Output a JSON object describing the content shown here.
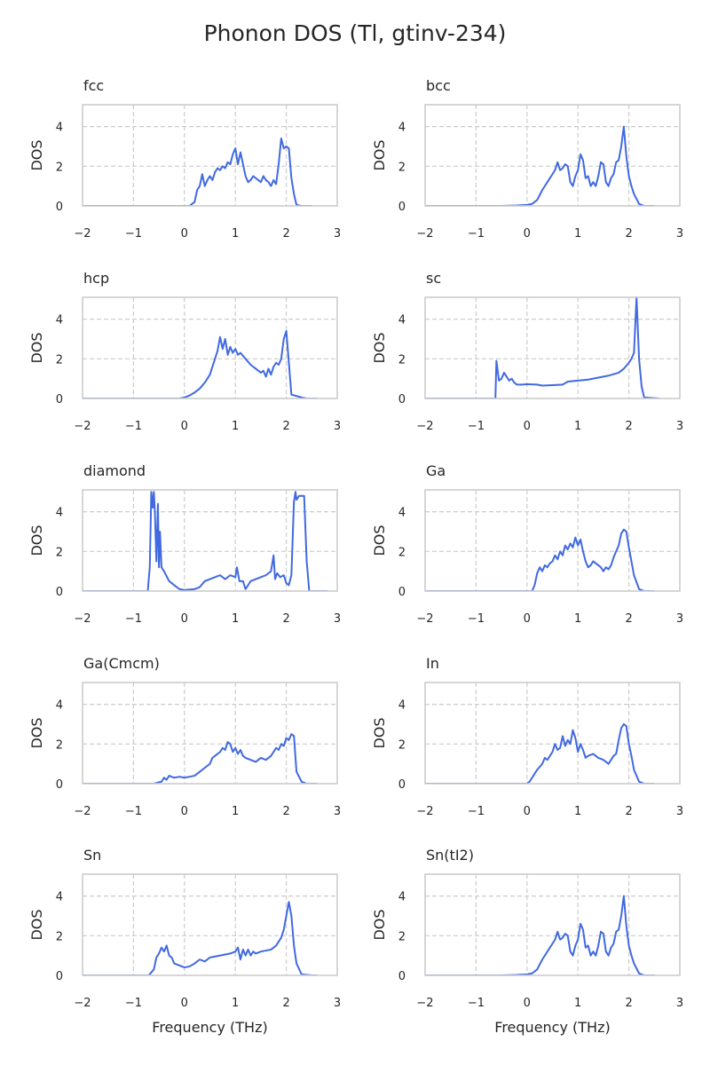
{
  "title": "Phonon DOS (Tl, gtinv-234)",
  "colors": {
    "line": "#4169e1",
    "grid": "#cccccc",
    "text": "#262626"
  },
  "chart_data": [
    {
      "type": "line",
      "title": "fcc",
      "ylabel": "DOS",
      "xlabel": "",
      "xlim": [
        -2,
        3
      ],
      "ylim": [
        0,
        5.1
      ],
      "xticks": [
        -2,
        -1,
        0,
        1,
        2,
        3
      ],
      "yticks": [
        0,
        2,
        4
      ],
      "grid": true,
      "x": [
        -2,
        0.1,
        0.2,
        0.25,
        0.3,
        0.35,
        0.4,
        0.45,
        0.5,
        0.55,
        0.6,
        0.65,
        0.7,
        0.75,
        0.8,
        0.85,
        0.9,
        0.95,
        1.0,
        1.05,
        1.1,
        1.15,
        1.2,
        1.25,
        1.3,
        1.35,
        1.4,
        1.45,
        1.5,
        1.55,
        1.6,
        1.65,
        1.7,
        1.75,
        1.8,
        1.85,
        1.9,
        1.95,
        2.0,
        2.05,
        2.1,
        2.15,
        2.2,
        2.3,
        2.5
      ],
      "y": [
        0,
        0,
        0.2,
        0.8,
        1.0,
        1.6,
        1.0,
        1.3,
        1.5,
        1.3,
        1.7,
        1.9,
        1.8,
        2.0,
        1.9,
        2.2,
        2.1,
        2.6,
        2.9,
        2.1,
        2.7,
        2.1,
        1.5,
        1.2,
        1.3,
        1.5,
        1.4,
        1.3,
        1.2,
        1.5,
        1.3,
        1.2,
        1.0,
        1.3,
        1.1,
        2.1,
        3.4,
        2.9,
        3.0,
        2.9,
        1.4,
        0.6,
        0.05,
        0,
        0
      ]
    },
    {
      "type": "line",
      "title": "bcc",
      "ylabel": "DOS",
      "xlabel": "",
      "xlim": [
        -2,
        3
      ],
      "ylim": [
        0,
        5.1
      ],
      "xticks": [
        -2,
        -1,
        0,
        1,
        2,
        3
      ],
      "yticks": [
        0,
        2,
        4
      ],
      "grid": true,
      "x": [
        -2,
        -0.5,
        -0.2,
        0,
        0.1,
        0.2,
        0.3,
        0.4,
        0.5,
        0.55,
        0.6,
        0.65,
        0.7,
        0.75,
        0.8,
        0.85,
        0.9,
        0.95,
        1.0,
        1.05,
        1.1,
        1.15,
        1.2,
        1.25,
        1.3,
        1.35,
        1.4,
        1.45,
        1.5,
        1.55,
        1.6,
        1.65,
        1.7,
        1.75,
        1.8,
        1.85,
        1.9,
        1.95,
        2.0,
        2.05,
        2.1,
        2.2,
        2.3,
        2.5
      ],
      "y": [
        0,
        0,
        0.02,
        0.05,
        0.1,
        0.3,
        0.8,
        1.2,
        1.6,
        1.8,
        2.2,
        1.8,
        1.9,
        2.1,
        2.0,
        1.2,
        1.0,
        1.5,
        1.8,
        2.6,
        2.3,
        1.4,
        1.5,
        1.0,
        1.2,
        1.0,
        1.5,
        2.2,
        2.1,
        1.2,
        1.0,
        1.4,
        1.6,
        2.2,
        2.3,
        3.0,
        4.0,
        2.5,
        1.5,
        1.0,
        0.6,
        0.1,
        0,
        0
      ]
    },
    {
      "type": "line",
      "title": "hcp",
      "ylabel": "DOS",
      "xlabel": "",
      "xlim": [
        -2,
        3
      ],
      "ylim": [
        0,
        5.1
      ],
      "xticks": [
        -2,
        -1,
        0,
        1,
        2,
        3
      ],
      "yticks": [
        0,
        2,
        4
      ],
      "grid": true,
      "x": [
        -2,
        -0.1,
        0,
        0.1,
        0.2,
        0.3,
        0.4,
        0.5,
        0.55,
        0.6,
        0.65,
        0.7,
        0.75,
        0.8,
        0.85,
        0.9,
        0.95,
        1.0,
        1.05,
        1.1,
        1.2,
        1.3,
        1.4,
        1.5,
        1.55,
        1.6,
        1.65,
        1.7,
        1.75,
        1.8,
        1.85,
        1.9,
        1.95,
        2.0,
        2.05,
        2.1,
        2.3,
        2.4,
        2.6
      ],
      "y": [
        0,
        0,
        0.05,
        0.15,
        0.3,
        0.5,
        0.8,
        1.2,
        1.6,
        2.0,
        2.4,
        3.1,
        2.5,
        3.0,
        2.2,
        2.6,
        2.3,
        2.5,
        2.2,
        2.3,
        2.0,
        1.7,
        1.5,
        1.3,
        1.4,
        1.1,
        1.5,
        1.2,
        1.6,
        1.8,
        1.7,
        2.0,
        3.0,
        3.4,
        1.8,
        0.2,
        0.05,
        0,
        0
      ]
    },
    {
      "type": "line",
      "title": "sc",
      "ylabel": "DOS",
      "xlabel": "",
      "xlim": [
        -2,
        3
      ],
      "ylim": [
        0,
        5.1
      ],
      "xticks": [
        -2,
        -1,
        0,
        1,
        2,
        3
      ],
      "yticks": [
        0,
        2,
        4
      ],
      "grid": true,
      "x": [
        -2,
        -0.7,
        -0.62,
        -0.6,
        -0.55,
        -0.5,
        -0.45,
        -0.4,
        -0.35,
        -0.3,
        -0.25,
        -0.2,
        -0.1,
        0,
        0.2,
        0.3,
        0.5,
        0.7,
        0.8,
        1.0,
        1.2,
        1.4,
        1.6,
        1.8,
        1.9,
        2.0,
        2.05,
        2.1,
        2.15,
        2.2,
        2.25,
        2.3,
        2.6
      ],
      "y": [
        0,
        0,
        0,
        1.9,
        0.9,
        1.0,
        1.3,
        1.1,
        0.9,
        1.0,
        0.8,
        0.7,
        0.7,
        0.72,
        0.7,
        0.65,
        0.67,
        0.7,
        0.85,
        0.9,
        0.95,
        1.05,
        1.15,
        1.3,
        1.5,
        1.8,
        2.0,
        2.3,
        5.1,
        2.0,
        0.6,
        0.05,
        0
      ]
    },
    {
      "type": "line",
      "title": "diamond",
      "ylabel": "DOS",
      "xlabel": "",
      "xlim": [
        -2,
        3
      ],
      "ylim": [
        0,
        5.1
      ],
      "xticks": [
        -2,
        -1,
        0,
        1,
        2,
        3
      ],
      "yticks": [
        0,
        2,
        4
      ],
      "grid": true,
      "x": [
        -2,
        -1.0,
        -0.72,
        -0.68,
        -0.65,
        -0.62,
        -0.6,
        -0.58,
        -0.55,
        -0.52,
        -0.5,
        -0.48,
        -0.45,
        -0.4,
        -0.3,
        -0.2,
        -0.1,
        0,
        0.2,
        0.3,
        0.4,
        0.5,
        0.6,
        0.7,
        0.8,
        0.9,
        1.0,
        1.03,
        1.08,
        1.15,
        1.2,
        1.3,
        1.4,
        1.5,
        1.6,
        1.7,
        1.75,
        1.78,
        1.82,
        1.88,
        1.95,
        2.0,
        2.05,
        2.1,
        2.15,
        2.18,
        2.2,
        2.25,
        2.35,
        2.4,
        2.45,
        2.5,
        2.8
      ],
      "y": [
        0,
        0,
        0,
        1.2,
        5.0,
        4.2,
        5.0,
        4.0,
        1.5,
        4.4,
        1.2,
        3.0,
        1.2,
        1.0,
        0.5,
        0.3,
        0.1,
        0.05,
        0.1,
        0.2,
        0.5,
        0.6,
        0.7,
        0.8,
        0.6,
        0.8,
        0.7,
        1.2,
        0.5,
        0.5,
        0.1,
        0.5,
        0.6,
        0.7,
        0.8,
        1.0,
        1.8,
        0.6,
        0.9,
        0.7,
        0.8,
        0.4,
        0.3,
        0.8,
        4.5,
        5.0,
        4.6,
        4.8,
        4.8,
        1.5,
        0,
        0,
        0
      ]
    },
    {
      "type": "line",
      "title": "Ga",
      "ylabel": "DOS",
      "xlabel": "",
      "xlim": [
        -2,
        3
      ],
      "ylim": [
        0,
        5.1
      ],
      "xticks": [
        -2,
        -1,
        0,
        1,
        2,
        3
      ],
      "yticks": [
        0,
        2,
        4
      ],
      "grid": true,
      "x": [
        -2,
        -0.3,
        0.1,
        0.15,
        0.2,
        0.25,
        0.3,
        0.35,
        0.4,
        0.45,
        0.5,
        0.55,
        0.6,
        0.65,
        0.7,
        0.75,
        0.8,
        0.85,
        0.9,
        0.95,
        1.0,
        1.05,
        1.1,
        1.15,
        1.2,
        1.25,
        1.3,
        1.35,
        1.4,
        1.45,
        1.5,
        1.55,
        1.6,
        1.65,
        1.7,
        1.75,
        1.8,
        1.85,
        1.9,
        1.95,
        2.0,
        2.05,
        2.1,
        2.2,
        2.3,
        2.5
      ],
      "y": [
        0,
        0,
        0,
        0.3,
        0.9,
        1.2,
        1.0,
        1.3,
        1.2,
        1.4,
        1.5,
        1.8,
        1.6,
        2.0,
        1.8,
        2.3,
        2.1,
        2.4,
        2.2,
        2.7,
        2.3,
        2.6,
        2.0,
        1.5,
        1.2,
        1.3,
        1.5,
        1.4,
        1.3,
        1.2,
        1.0,
        1.2,
        1.1,
        1.3,
        1.7,
        2.0,
        2.3,
        2.9,
        3.1,
        3.0,
        2.2,
        1.5,
        0.8,
        0.1,
        0,
        0
      ]
    },
    {
      "type": "line",
      "title": "Ga(Cmcm)",
      "ylabel": "DOS",
      "xlabel": "",
      "xlim": [
        -2,
        3
      ],
      "ylim": [
        0,
        5.1
      ],
      "xticks": [
        -2,
        -1,
        0,
        1,
        2,
        3
      ],
      "yticks": [
        0,
        2,
        4
      ],
      "grid": true,
      "x": [
        -2,
        -0.6,
        -0.45,
        -0.4,
        -0.35,
        -0.3,
        -0.25,
        -0.2,
        -0.1,
        0,
        0.1,
        0.2,
        0.25,
        0.3,
        0.4,
        0.5,
        0.55,
        0.6,
        0.65,
        0.7,
        0.75,
        0.8,
        0.85,
        0.9,
        0.95,
        1.0,
        1.05,
        1.1,
        1.15,
        1.2,
        1.3,
        1.4,
        1.5,
        1.6,
        1.7,
        1.75,
        1.8,
        1.85,
        1.9,
        1.95,
        2.0,
        2.05,
        2.1,
        2.15,
        2.2,
        2.3,
        2.4,
        2.6
      ],
      "y": [
        0,
        0,
        0.1,
        0.3,
        0.2,
        0.4,
        0.35,
        0.3,
        0.35,
        0.3,
        0.35,
        0.4,
        0.5,
        0.6,
        0.8,
        1.0,
        1.3,
        1.4,
        1.5,
        1.6,
        1.8,
        1.7,
        2.1,
        2.0,
        1.6,
        1.8,
        1.5,
        1.7,
        1.4,
        1.3,
        1.2,
        1.1,
        1.3,
        1.2,
        1.4,
        1.6,
        1.8,
        1.7,
        2.0,
        1.9,
        2.3,
        2.2,
        2.5,
        2.4,
        0.6,
        0.1,
        0,
        0
      ]
    },
    {
      "type": "line",
      "title": "In",
      "ylabel": "DOS",
      "xlabel": "",
      "xlim": [
        -2,
        3
      ],
      "ylim": [
        0,
        5.1
      ],
      "xticks": [
        -2,
        -1,
        0,
        1,
        2,
        3
      ],
      "yticks": [
        0,
        2,
        4
      ],
      "grid": true,
      "x": [
        -2,
        -0.4,
        0,
        0.05,
        0.1,
        0.2,
        0.3,
        0.35,
        0.4,
        0.45,
        0.5,
        0.55,
        0.6,
        0.65,
        0.7,
        0.75,
        0.8,
        0.85,
        0.9,
        0.95,
        1.0,
        1.05,
        1.1,
        1.15,
        1.2,
        1.3,
        1.4,
        1.5,
        1.6,
        1.7,
        1.75,
        1.8,
        1.85,
        1.9,
        1.95,
        2.0,
        2.05,
        2.1,
        2.2,
        2.3,
        2.5
      ],
      "y": [
        0,
        0,
        0,
        0.1,
        0.3,
        0.7,
        1.0,
        1.3,
        1.2,
        1.4,
        1.6,
        2.0,
        1.7,
        1.8,
        2.4,
        1.9,
        2.2,
        2.0,
        2.7,
        2.3,
        1.6,
        2.0,
        1.7,
        1.3,
        1.4,
        1.5,
        1.3,
        1.2,
        1.0,
        1.4,
        1.5,
        2.2,
        2.8,
        3.0,
        2.9,
        2.0,
        1.4,
        0.7,
        0.1,
        0,
        0
      ]
    },
    {
      "type": "line",
      "title": "Sn",
      "ylabel": "DOS",
      "xlabel": "Frequency (THz)",
      "xlim": [
        -2,
        3
      ],
      "ylim": [
        0,
        5.1
      ],
      "xticks": [
        -2,
        -1,
        0,
        1,
        2,
        3
      ],
      "yticks": [
        0,
        2,
        4
      ],
      "grid": true,
      "x": [
        -2,
        -0.7,
        -0.6,
        -0.55,
        -0.5,
        -0.45,
        -0.4,
        -0.35,
        -0.3,
        -0.25,
        -0.2,
        -0.1,
        0,
        0.1,
        0.2,
        0.3,
        0.4,
        0.5,
        0.6,
        0.7,
        0.8,
        0.9,
        1.0,
        1.05,
        1.1,
        1.15,
        1.2,
        1.25,
        1.3,
        1.35,
        1.4,
        1.5,
        1.6,
        1.7,
        1.8,
        1.9,
        1.95,
        2.0,
        2.05,
        2.1,
        2.15,
        2.2,
        2.3,
        2.5,
        2.6
      ],
      "y": [
        0,
        0,
        0.3,
        0.9,
        1.1,
        1.4,
        1.2,
        1.5,
        1.0,
        0.9,
        0.6,
        0.5,
        0.4,
        0.45,
        0.6,
        0.8,
        0.7,
        0.9,
        0.95,
        1.0,
        1.05,
        1.1,
        1.2,
        1.4,
        0.8,
        1.3,
        1.0,
        1.3,
        1.0,
        1.2,
        1.1,
        1.2,
        1.25,
        1.3,
        1.5,
        1.9,
        2.3,
        3.0,
        3.7,
        3.0,
        1.5,
        0.6,
        0.05,
        0,
        0
      ]
    },
    {
      "type": "line",
      "title": "Sn(tI2)",
      "ylabel": "DOS",
      "xlabel": "Frequency (THz)",
      "xlim": [
        -2,
        3
      ],
      "ylim": [
        0,
        5.1
      ],
      "xticks": [
        -2,
        -1,
        0,
        1,
        2,
        3
      ],
      "yticks": [
        0,
        2,
        4
      ],
      "grid": true,
      "x": [
        -2,
        -0.5,
        -0.2,
        0,
        0.1,
        0.2,
        0.3,
        0.4,
        0.5,
        0.55,
        0.6,
        0.65,
        0.7,
        0.75,
        0.8,
        0.85,
        0.9,
        0.95,
        1.0,
        1.05,
        1.1,
        1.15,
        1.2,
        1.25,
        1.3,
        1.35,
        1.4,
        1.45,
        1.5,
        1.55,
        1.6,
        1.65,
        1.7,
        1.75,
        1.8,
        1.85,
        1.9,
        1.95,
        2.0,
        2.05,
        2.1,
        2.2,
        2.3,
        2.5
      ],
      "y": [
        0,
        0,
        0.02,
        0.05,
        0.1,
        0.3,
        0.8,
        1.2,
        1.6,
        1.8,
        2.2,
        1.8,
        1.9,
        2.1,
        2.0,
        1.2,
        1.0,
        1.5,
        1.8,
        2.6,
        2.3,
        1.4,
        1.5,
        1.0,
        1.2,
        1.0,
        1.5,
        2.2,
        2.1,
        1.2,
        1.0,
        1.4,
        1.6,
        2.2,
        2.3,
        3.0,
        4.0,
        2.5,
        1.5,
        1.0,
        0.6,
        0.1,
        0,
        0
      ]
    }
  ]
}
